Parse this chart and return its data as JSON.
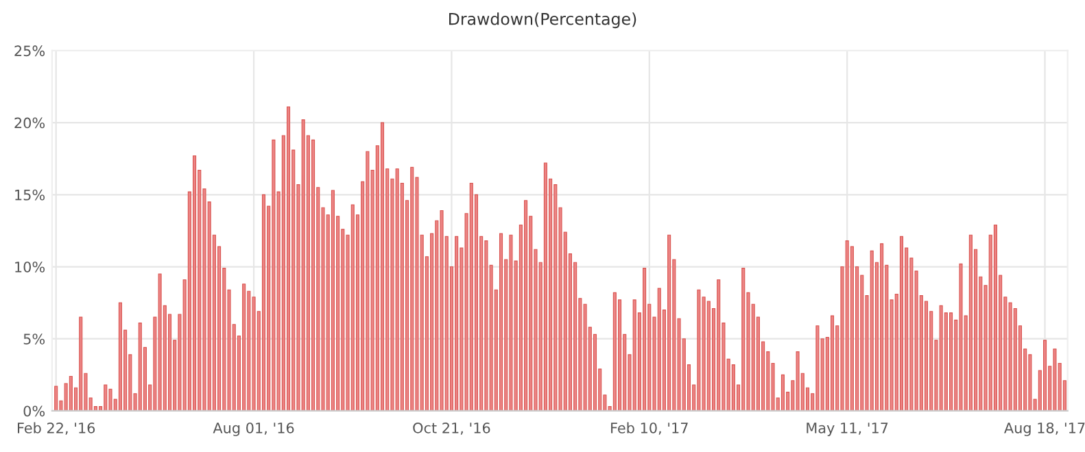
{
  "chart_data": {
    "type": "bar",
    "title": "Drawdown(Percentage)",
    "categories": [
      "Feb 22, '16",
      null,
      null,
      null,
      null,
      null,
      null,
      null,
      null,
      null,
      null,
      null,
      null,
      null,
      null,
      null,
      null,
      null,
      null,
      null,
      null,
      null,
      null,
      null,
      null,
      null,
      null,
      null,
      null,
      null,
      null,
      null,
      null,
      null,
      null,
      null,
      null,
      null,
      null,
      null,
      "Aug 01, '16",
      null,
      null,
      null,
      null,
      null,
      null,
      null,
      null,
      null,
      null,
      null,
      null,
      null,
      null,
      null,
      null,
      null,
      null,
      null,
      null,
      null,
      null,
      null,
      null,
      null,
      null,
      null,
      null,
      null,
      null,
      null,
      null,
      null,
      null,
      null,
      null,
      null,
      null,
      null,
      "Oct 21, '16",
      null,
      null,
      null,
      null,
      null,
      null,
      null,
      null,
      null,
      null,
      null,
      null,
      null,
      null,
      null,
      null,
      null,
      null,
      null,
      null,
      null,
      null,
      null,
      null,
      null,
      null,
      null,
      null,
      null,
      null,
      null,
      null,
      null,
      null,
      null,
      null,
      null,
      null,
      null,
      "Feb 10, '17",
      null,
      null,
      null,
      null,
      null,
      null,
      null,
      null,
      null,
      null,
      null,
      null,
      null,
      null,
      null,
      null,
      null,
      null,
      null,
      null,
      null,
      null,
      null,
      null,
      null,
      null,
      null,
      null,
      null,
      null,
      null,
      null,
      null,
      null,
      null,
      null,
      null,
      null,
      null,
      "May 11, '17",
      null,
      null,
      null,
      null,
      null,
      null,
      null,
      null,
      null,
      null,
      null,
      null,
      null,
      null,
      null,
      null,
      null,
      null,
      null,
      null,
      null,
      null,
      null,
      null,
      null,
      null,
      null,
      null,
      null,
      null,
      null,
      null,
      null,
      null,
      null,
      null,
      null,
      null,
      null,
      "Aug 18, '17",
      null,
      null,
      null,
      null
    ],
    "values": [
      1.7,
      0.7,
      1.9,
      2.4,
      1.6,
      6.5,
      2.6,
      0.9,
      0.3,
      0.3,
      1.8,
      1.5,
      0.8,
      7.5,
      5.6,
      3.9,
      1.2,
      6.1,
      4.4,
      1.8,
      6.5,
      9.5,
      7.3,
      6.7,
      4.9,
      6.7,
      9.1,
      15.2,
      17.7,
      16.7,
      15.4,
      14.5,
      12.2,
      11.4,
      9.9,
      8.4,
      6.0,
      5.2,
      8.8,
      8.3,
      7.9,
      6.9,
      15.0,
      14.2,
      18.8,
      15.2,
      19.1,
      21.1,
      18.1,
      15.7,
      20.2,
      19.1,
      18.8,
      15.5,
      14.1,
      13.6,
      15.3,
      13.5,
      12.6,
      12.2,
      14.3,
      13.6,
      15.9,
      18.0,
      16.7,
      18.4,
      20.0,
      16.8,
      16.1,
      16.8,
      15.8,
      14.6,
      16.9,
      16.2,
      12.2,
      10.7,
      12.3,
      13.2,
      13.9,
      12.1,
      10.0,
      12.1,
      11.3,
      13.7,
      15.8,
      15.0,
      12.1,
      11.8,
      10.1,
      8.4,
      12.3,
      10.5,
      12.2,
      10.4,
      12.9,
      14.6,
      13.5,
      11.2,
      10.3,
      17.2,
      16.1,
      15.7,
      14.1,
      12.4,
      10.9,
      10.3,
      7.8,
      7.4,
      5.8,
      5.3,
      2.9,
      1.1,
      0.3,
      8.2,
      7.7,
      5.3,
      3.9,
      7.7,
      6.8,
      9.9,
      7.4,
      6.5,
      8.5,
      7.0,
      12.2,
      10.5,
      6.4,
      5.0,
      3.2,
      1.8,
      8.4,
      7.9,
      7.6,
      7.1,
      9.1,
      6.1,
      3.6,
      3.2,
      1.8,
      9.9,
      8.2,
      7.4,
      6.5,
      4.8,
      4.1,
      3.3,
      0.9,
      2.5,
      1.3,
      2.1,
      4.1,
      2.6,
      1.6,
      1.2,
      5.9,
      5.0,
      5.1,
      6.6,
      5.9,
      10.0,
      11.8,
      11.4,
      10.0,
      9.4,
      8.0,
      11.1,
      10.3,
      11.6,
      10.1,
      7.7,
      8.1,
      12.1,
      11.3,
      10.6,
      9.7,
      8.0,
      7.6,
      6.9,
      4.9,
      7.3,
      6.8,
      6.8,
      6.3,
      10.2,
      6.6,
      12.2,
      11.2,
      9.3,
      8.7,
      12.2,
      12.9,
      9.4,
      7.9,
      7.5,
      7.1,
      5.9,
      4.3,
      3.9,
      0.8,
      2.8,
      4.9,
      3.1,
      4.3,
      3.3,
      2.1
    ],
    "color": "#ec8585",
    "ylim": [
      0,
      25
    ],
    "yticks": [
      {
        "value": 0,
        "label": "0%"
      },
      {
        "value": 5,
        "label": "5%"
      },
      {
        "value": 10,
        "label": "10%"
      },
      {
        "value": 15,
        "label": "15%"
      },
      {
        "value": 20,
        "label": "20%"
      },
      {
        "value": 25,
        "label": "25%"
      }
    ],
    "grid": true
  }
}
